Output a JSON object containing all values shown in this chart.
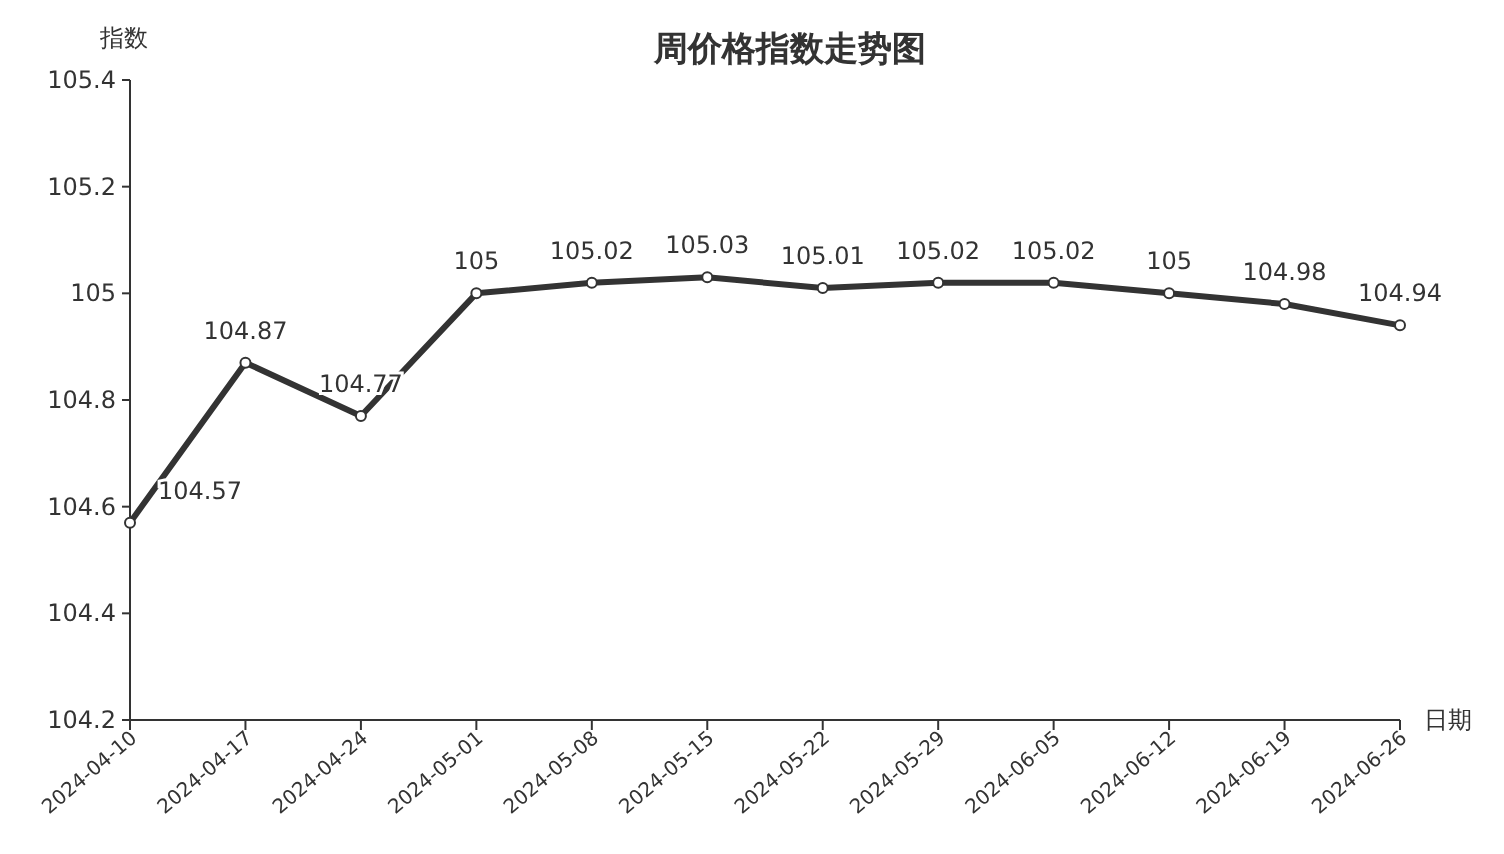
{
  "chart_data": {
    "type": "line",
    "title": "周价格指数走势图",
    "ylabel": "指数",
    "xlabel": "日期",
    "categories": [
      "2024-04-10",
      "2024-04-17",
      "2024-04-24",
      "2024-05-01",
      "2024-05-08",
      "2024-05-15",
      "2024-05-22",
      "2024-05-29",
      "2024-06-05",
      "2024-06-12",
      "2024-06-19",
      "2024-06-26"
    ],
    "series": [
      {
        "color": "#333333",
        "values": [
          104.57,
          104.87,
          104.77,
          105,
          105.02,
          105.03,
          105.01,
          105.02,
          105.02,
          105,
          104.98,
          104.94
        ]
      }
    ],
    "ylim": [
      104.2,
      105.4
    ],
    "yticks": [
      104.2,
      104.4,
      104.6,
      104.8,
      105,
      105.2,
      105.4
    ],
    "data_labels": true,
    "marker": "circle",
    "line_style": "solid",
    "grid": false
  }
}
